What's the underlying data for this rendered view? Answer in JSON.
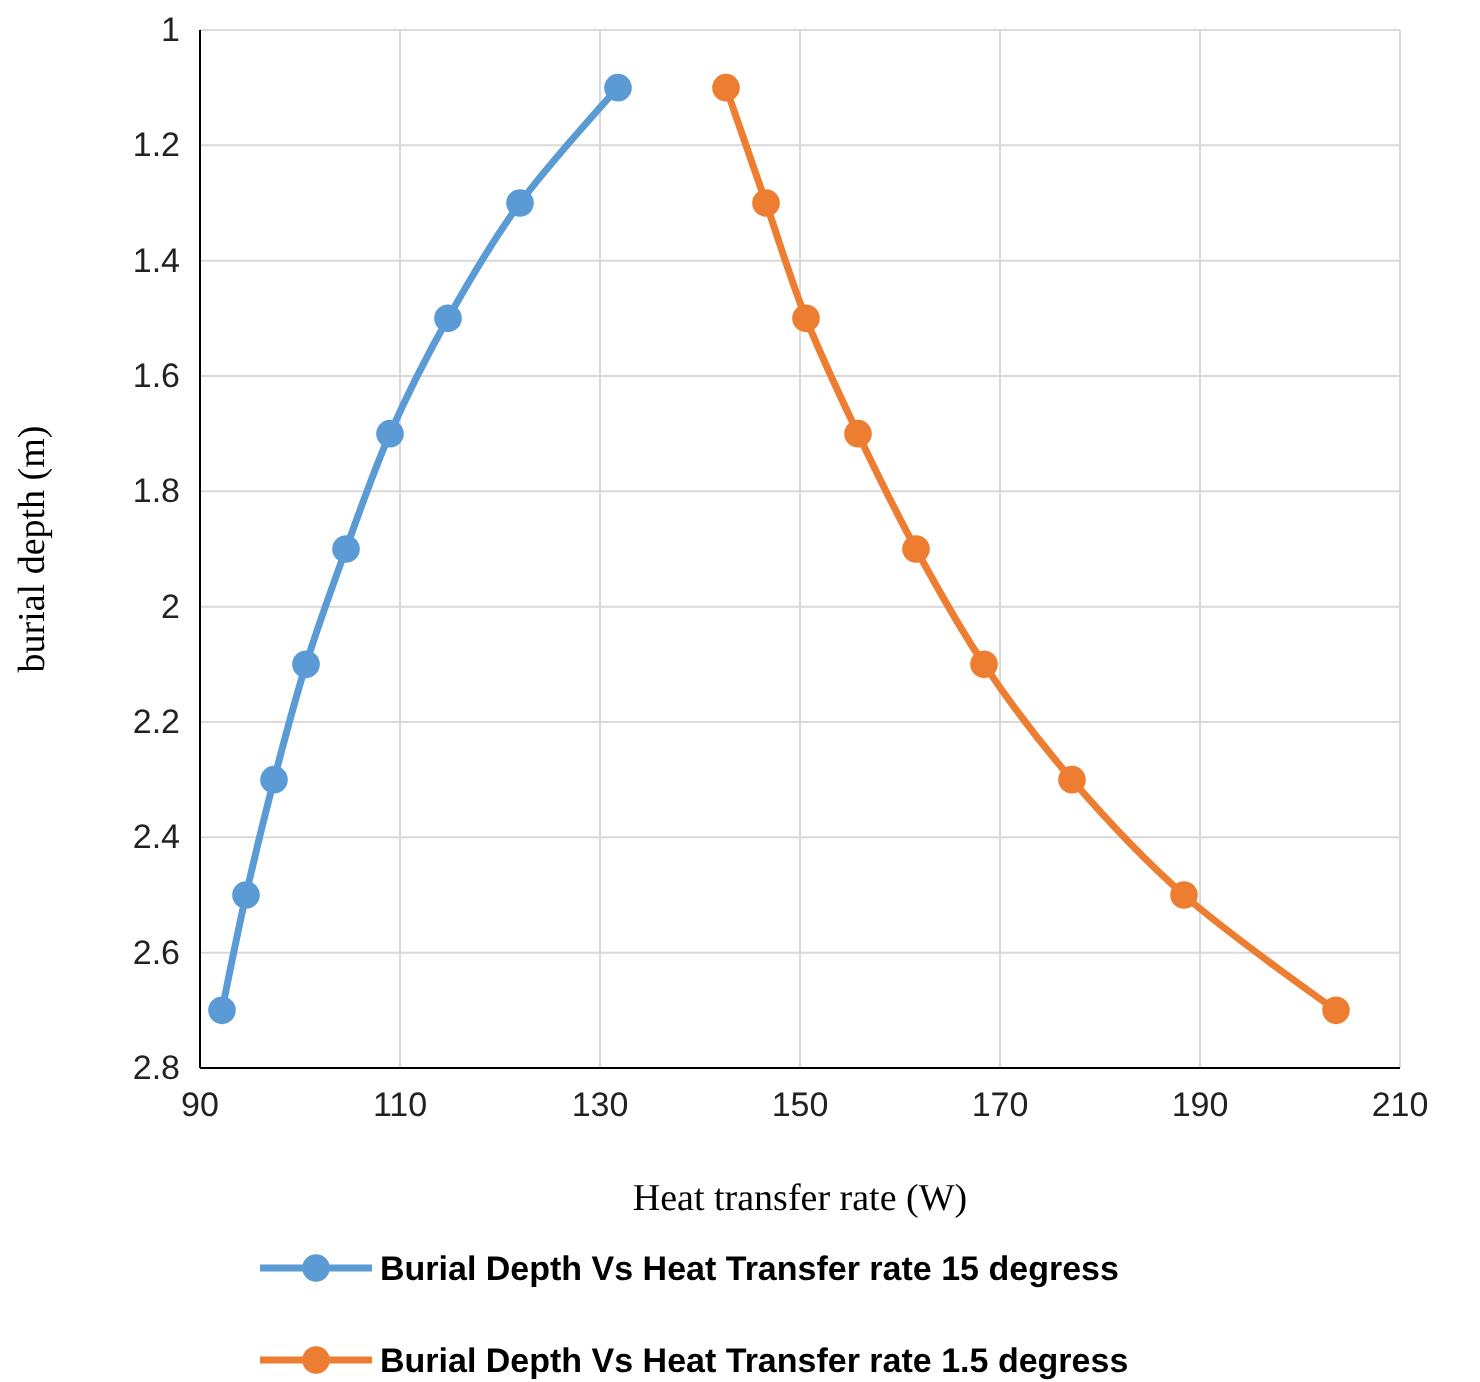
{
  "chart_data": {
    "type": "line",
    "xlabel": "Heat transfer rate (W)",
    "ylabel": "burial depth (m)",
    "xlim": [
      90,
      210
    ],
    "xticks": [
      90,
      110,
      130,
      150,
      170,
      190,
      210
    ],
    "ylim": [
      2.8,
      1
    ],
    "yticks": [
      1,
      {
        "value": 1.2,
        "label": "1.2"
      },
      {
        "value": 1.4,
        "label": "1.4"
      },
      {
        "value": 1.6,
        "label": "1.6"
      },
      {
        "value": 1.8,
        "label": "1.8"
      },
      2,
      {
        "value": 2.2,
        "label": "2.2"
      },
      {
        "value": 2.4,
        "label": "2.4"
      },
      {
        "value": 2.6,
        "label": "2.6"
      },
      {
        "value": 2.8,
        "label": "2.8"
      }
    ],
    "grid": true,
    "legend": "bottom",
    "marker": "circle",
    "line_style": "solid",
    "series": [
      {
        "name": "Burial Depth Vs Heat Transfer rate 15 degress",
        "color": "#5b9bd5",
        "x": [
          131.8,
          122,
          114.8,
          109,
          104.6,
          100.6,
          97.4,
          94.6,
          92.2
        ],
        "values": [
          1.1,
          1.3,
          1.5,
          1.7,
          1.9,
          2.1,
          2.3,
          2.5,
          2.7
        ]
      },
      {
        "name": "Burial Depth Vs Heat Transfer rate 1.5 degress",
        "color": "#ed7d31",
        "x": [
          142.6,
          146.6,
          150.6,
          155.8,
          161.6,
          168.4,
          177.2,
          188.4,
          203.6
        ],
        "values": [
          1.1,
          1.3,
          1.5,
          1.7,
          1.9,
          2.1,
          2.3,
          2.5,
          2.7
        ]
      }
    ]
  }
}
